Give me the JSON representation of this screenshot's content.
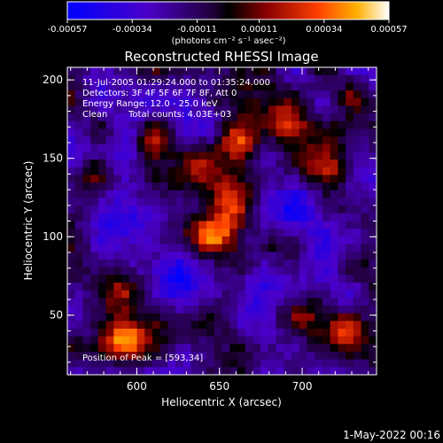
{
  "chart_data": {
    "type": "heatmap",
    "title": "Reconstructed RHESSI Image",
    "xlabel": "Heliocentric X (arcsec)",
    "ylabel": "Heliocentric Y (arcsec)",
    "xlim": [
      558,
      745
    ],
    "ylim": [
      12,
      208
    ],
    "xticks": [
      600,
      650,
      700
    ],
    "yticks": [
      50,
      100,
      150,
      200
    ],
    "colorbar": {
      "unit_label": "(photons cm⁻² s⁻¹ asec⁻²)",
      "range": [
        -0.00057,
        0.00057
      ],
      "tick_values": [
        -0.00057,
        -0.00034,
        -0.00011,
        0.00011,
        0.00034,
        0.00057
      ],
      "tick_labels": [
        "-0.00057",
        "-0.00034",
        "-0.00011",
        "0.00011",
        "0.00034",
        "0.00057"
      ]
    },
    "annotations": [
      "11-Jul-2005 01:29:24.000 to 01:35:24.000",
      "Detectors: 3F 4F 5F 6F 7F 8F, Att 0",
      "Energy Range: 12.0 - 25.0 keV",
      "Clean",
      "Total counts: 4.03E+03"
    ],
    "peak_label": "Position of Peak = [593,34]",
    "sources": [
      {
        "x": 648,
        "y": 103,
        "amp": 0.00057,
        "sigma": 11
      },
      {
        "x": 655,
        "y": 125,
        "amp": 0.0004,
        "sigma": 9
      },
      {
        "x": 638,
        "y": 145,
        "amp": 0.00042,
        "sigma": 10
      },
      {
        "x": 660,
        "y": 162,
        "amp": 0.0004,
        "sigma": 9
      },
      {
        "x": 593,
        "y": 34,
        "amp": 0.0006,
        "sigma": 9
      },
      {
        "x": 585,
        "y": 65,
        "amp": 0.00032,
        "sigma": 10
      },
      {
        "x": 610,
        "y": 160,
        "amp": 0.0003,
        "sigma": 8
      },
      {
        "x": 575,
        "y": 140,
        "amp": 0.0003,
        "sigma": 7
      },
      {
        "x": 700,
        "y": 50,
        "amp": 0.00035,
        "sigma": 10
      },
      {
        "x": 725,
        "y": 40,
        "amp": 0.00035,
        "sigma": 8
      },
      {
        "x": 715,
        "y": 145,
        "amp": 0.0004,
        "sigma": 11
      },
      {
        "x": 690,
        "y": 175,
        "amp": 0.0003,
        "sigma": 9
      },
      {
        "x": 730,
        "y": 190,
        "amp": 0.00028,
        "sigma": 7
      },
      {
        "x": 682,
        "y": 95,
        "amp": 0.00022,
        "sigma": 8
      },
      {
        "x": 625,
        "y": 75,
        "amp": -0.00025,
        "sigma": 10
      },
      {
        "x": 670,
        "y": 65,
        "amp": -0.00022,
        "sigma": 10
      },
      {
        "x": 700,
        "y": 120,
        "amp": -0.00022,
        "sigma": 12
      },
      {
        "x": 590,
        "y": 110,
        "amp": -0.00025,
        "sigma": 10
      }
    ]
  },
  "footer": {
    "date": "1-May-2022 00:16"
  }
}
